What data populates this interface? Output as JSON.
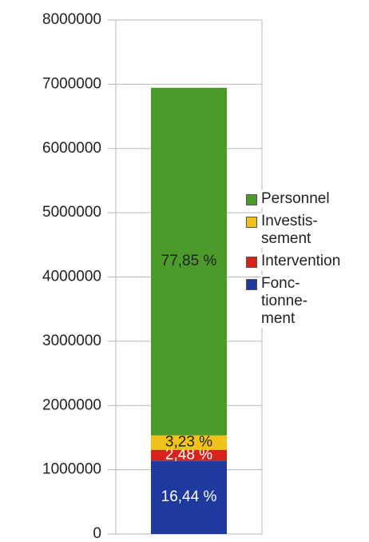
{
  "chart_data": {
    "type": "stacked_bar",
    "categories": [
      null
    ],
    "series": [
      {
        "name": "Fonc-\ntionne-\nment",
        "color": "#1f3a9e",
        "values": [
          1140000
        ],
        "share_labels": [
          "16,44 %"
        ],
        "label_color": "#ffffff"
      },
      {
        "name": "Intervention",
        "color": "#d8231c",
        "values": [
          170000
        ],
        "share_labels": [
          "2,48 %"
        ],
        "label_color": "#ffffff"
      },
      {
        "name": "Investis-\nsement",
        "color": "#f0c21a",
        "values": [
          225000
        ],
        "share_labels": [
          "3,23 %"
        ],
        "label_color": "#222222"
      },
      {
        "name": "Personnel",
        "color": "#4b9b2b",
        "values": [
          5410000
        ],
        "share_labels": [
          "77,85 %"
        ],
        "label_color": "#222222"
      }
    ],
    "ylim": [
      0,
      8000000
    ],
    "yticks": [
      0,
      1000000,
      2000000,
      3000000,
      4000000,
      5000000,
      6000000,
      7000000,
      8000000
    ],
    "grid": true,
    "legend": "right"
  }
}
